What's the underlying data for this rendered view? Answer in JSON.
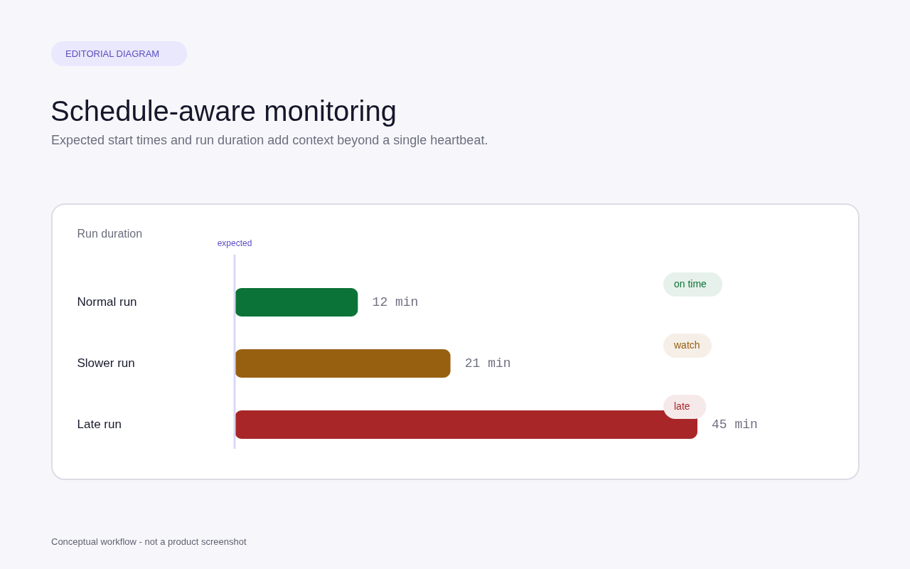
{
  "chart_data": {
    "type": "bar",
    "orientation": "horizontal",
    "title": "Schedule-aware monitoring",
    "subtitle": "Expected start times and run duration add context beyond a single heartbeat.",
    "xlabel": "Run duration",
    "categories": [
      "Normal run",
      "Slower run",
      "Late run"
    ],
    "values": [
      12,
      21,
      45
    ],
    "colors": [
      "#0b7337",
      "#976011",
      "#a82628"
    ],
    "value_labels": [
      "12 min",
      "21 min",
      "45 min"
    ],
    "tick_labels": "y",
    "ref_lines": [
      {
        "axis": "x",
        "value": 0,
        "label": "expected",
        "color": "#d9d9f5"
      }
    ],
    "annotations": [
      "EDITORIAL DIAGRAM",
      "on time",
      "watch",
      "late",
      "Conceptual workflow - not a product screenshot"
    ]
  }
}
